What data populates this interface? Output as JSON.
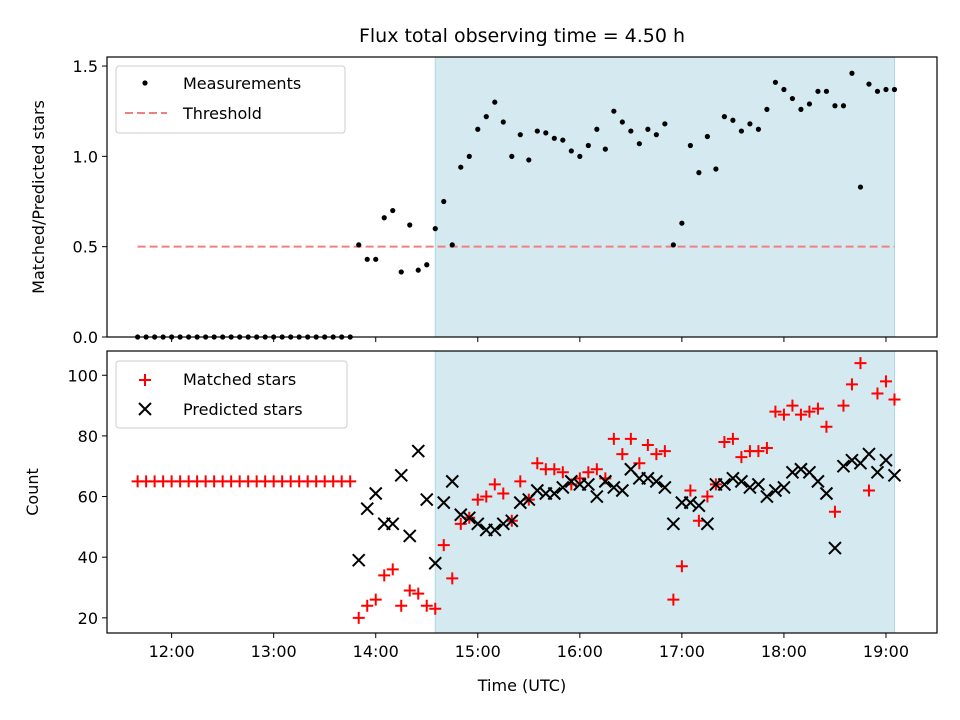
{
  "figure_title": "Flux total observing time = 4.50 h",
  "chart_data": [
    {
      "type": "scatter",
      "ylabel": "Matched/Predicted stars",
      "xlim": [
        "11:22",
        "19:30"
      ],
      "ylim": [
        0,
        1.55
      ],
      "y_ticks": [
        "0.0",
        "0.5",
        "1.0",
        "1.5"
      ],
      "y_tick_values": [
        0,
        0.5,
        1.0,
        1.5
      ],
      "shaded_region": {
        "x_start": "14:35",
        "x_end": "19:05",
        "color": "#d4eaf0"
      },
      "legend": {
        "position": "top-left",
        "entries": [
          {
            "label": "Measurements",
            "marker": "dot",
            "color": "#000000"
          },
          {
            "label": "Threshold",
            "marker": "dashed-line",
            "color": "#f08080"
          }
        ]
      },
      "threshold": {
        "value": 0.5,
        "x_start": "11:40",
        "x_end": "19:05"
      },
      "series": [
        {
          "name": "Measurements",
          "color": "#000000",
          "x": [
            "11:40",
            "11:45",
            "11:50",
            "11:55",
            "12:00",
            "12:05",
            "12:10",
            "12:15",
            "12:20",
            "12:25",
            "12:30",
            "12:35",
            "12:40",
            "12:45",
            "12:50",
            "12:55",
            "13:00",
            "13:05",
            "13:10",
            "13:15",
            "13:20",
            "13:25",
            "13:30",
            "13:35",
            "13:40",
            "13:45",
            "13:50",
            "13:55",
            "14:00",
            "14:05",
            "14:10",
            "14:15",
            "14:20",
            "14:25",
            "14:30",
            "14:35",
            "14:40",
            "14:45",
            "14:50",
            "14:55",
            "15:00",
            "15:05",
            "15:10",
            "15:15",
            "15:20",
            "15:25",
            "15:30",
            "15:35",
            "15:40",
            "15:45",
            "15:50",
            "15:55",
            "16:00",
            "16:05",
            "16:10",
            "16:15",
            "16:20",
            "16:25",
            "16:30",
            "16:35",
            "16:40",
            "16:45",
            "16:50",
            "16:55",
            "17:00",
            "17:05",
            "17:10",
            "17:15",
            "17:20",
            "17:25",
            "17:30",
            "17:35",
            "17:40",
            "17:45",
            "17:50",
            "17:55",
            "18:00",
            "18:05",
            "18:10",
            "18:15",
            "18:20",
            "18:25",
            "18:30",
            "18:35",
            "18:40",
            "18:45",
            "18:50",
            "18:55",
            "19:00",
            "19:05"
          ],
          "y": [
            0,
            0,
            0,
            0,
            0,
            0,
            0,
            0,
            0,
            0,
            0,
            0,
            0,
            0,
            0,
            0,
            0,
            0,
            0,
            0,
            0,
            0,
            0,
            0,
            0,
            0,
            0.51,
            0.43,
            0.43,
            0.66,
            0.7,
            0.36,
            0.62,
            0.37,
            0.4,
            0.6,
            0.75,
            0.51,
            0.94,
            1.0,
            1.15,
            1.22,
            1.3,
            1.19,
            1.0,
            1.12,
            0.98,
            1.14,
            1.13,
            1.1,
            1.09,
            1.03,
            1.0,
            1.06,
            1.15,
            1.04,
            1.25,
            1.19,
            1.14,
            1.07,
            1.15,
            1.12,
            1.18,
            0.51,
            0.63,
            1.06,
            0.91,
            1.11,
            0.93,
            1.22,
            1.2,
            1.14,
            1.18,
            1.15,
            1.26,
            1.41,
            1.37,
            1.32,
            1.26,
            1.29,
            1.36,
            1.36,
            1.28,
            1.28,
            1.46,
            0.83,
            1.4,
            1.36,
            1.37,
            1.37
          ]
        }
      ]
    },
    {
      "type": "scatter",
      "xlabel": "Time (UTC)",
      "ylabel": "Count",
      "xlim": [
        "11:22",
        "19:30"
      ],
      "ylim": [
        15,
        108
      ],
      "x_ticks": [
        "12:00",
        "13:00",
        "14:00",
        "15:00",
        "16:00",
        "17:00",
        "18:00",
        "19:00"
      ],
      "y_ticks": [
        "20",
        "40",
        "60",
        "80",
        "100"
      ],
      "y_tick_values": [
        20,
        40,
        60,
        80,
        100
      ],
      "shaded_region": {
        "x_start": "14:35",
        "x_end": "19:05",
        "color": "#d4eaf0"
      },
      "legend": {
        "position": "top-left",
        "entries": [
          {
            "label": "Matched stars",
            "marker": "plus",
            "color": "#ff0000"
          },
          {
            "label": "Predicted stars",
            "marker": "x",
            "color": "#000000"
          }
        ]
      },
      "series": [
        {
          "name": "Matched stars",
          "marker": "plus",
          "color": "#ff0000",
          "x": [
            "11:40",
            "11:45",
            "11:50",
            "11:55",
            "12:00",
            "12:05",
            "12:10",
            "12:15",
            "12:20",
            "12:25",
            "12:30",
            "12:35",
            "12:40",
            "12:45",
            "12:50",
            "12:55",
            "13:00",
            "13:05",
            "13:10",
            "13:15",
            "13:20",
            "13:25",
            "13:30",
            "13:35",
            "13:40",
            "13:45",
            "13:50",
            "13:55",
            "14:00",
            "14:05",
            "14:10",
            "14:15",
            "14:20",
            "14:25",
            "14:30",
            "14:35",
            "14:40",
            "14:45",
            "14:50",
            "14:55",
            "15:00",
            "15:05",
            "15:10",
            "15:15",
            "15:20",
            "15:25",
            "15:30",
            "15:35",
            "15:40",
            "15:45",
            "15:50",
            "15:55",
            "16:00",
            "16:05",
            "16:10",
            "16:15",
            "16:20",
            "16:25",
            "16:30",
            "16:35",
            "16:40",
            "16:45",
            "16:50",
            "16:55",
            "17:00",
            "17:05",
            "17:10",
            "17:15",
            "17:20",
            "17:25",
            "17:30",
            "17:35",
            "17:40",
            "17:45",
            "17:50",
            "17:55",
            "18:00",
            "18:05",
            "18:10",
            "18:15",
            "18:20",
            "18:25",
            "18:30",
            "18:35",
            "18:40",
            "18:45",
            "18:50",
            "18:55",
            "19:00",
            "19:05"
          ],
          "y": [
            65,
            65,
            65,
            65,
            65,
            65,
            65,
            65,
            65,
            65,
            65,
            65,
            65,
            65,
            65,
            65,
            65,
            65,
            65,
            65,
            65,
            65,
            65,
            65,
            65,
            65,
            20,
            24,
            26,
            34,
            36,
            24,
            29,
            28,
            24,
            23,
            44,
            33,
            51,
            53,
            59,
            60,
            64,
            61,
            52,
            65,
            59,
            71,
            69,
            69,
            68,
            64,
            66,
            68,
            69,
            66,
            79,
            74,
            79,
            71,
            77,
            74,
            75,
            26,
            37,
            62,
            52,
            60,
            64,
            78,
            79,
            73,
            75,
            75,
            76,
            88,
            87,
            90,
            87,
            88,
            89,
            83,
            55,
            90,
            97,
            104,
            62,
            94,
            98,
            92
          ]
        },
        {
          "name": "Predicted stars",
          "marker": "x",
          "color": "#000000",
          "x": [
            "13:50",
            "13:55",
            "14:00",
            "14:05",
            "14:10",
            "14:15",
            "14:20",
            "14:25",
            "14:30",
            "14:35",
            "14:40",
            "14:45",
            "14:50",
            "14:55",
            "15:00",
            "15:05",
            "15:10",
            "15:15",
            "15:20",
            "15:25",
            "15:30",
            "15:35",
            "15:40",
            "15:45",
            "15:50",
            "15:55",
            "16:00",
            "16:05",
            "16:10",
            "16:15",
            "16:20",
            "16:25",
            "16:30",
            "16:35",
            "16:40",
            "16:45",
            "16:50",
            "16:55",
            "17:00",
            "17:05",
            "17:10",
            "17:15",
            "17:20",
            "17:25",
            "17:30",
            "17:35",
            "17:40",
            "17:45",
            "17:50",
            "17:55",
            "18:00",
            "18:05",
            "18:10",
            "18:15",
            "18:20",
            "18:25",
            "18:30",
            "18:35",
            "18:40",
            "18:45",
            "18:50",
            "18:55",
            "19:00",
            "19:05"
          ],
          "y": [
            39,
            56,
            61,
            51,
            51,
            67,
            47,
            75,
            59,
            38,
            58,
            65,
            54,
            53,
            51,
            49,
            49,
            51,
            52,
            58,
            59,
            62,
            61,
            61,
            63,
            65,
            64,
            64,
            60,
            65,
            63,
            62,
            69,
            66,
            66,
            65,
            63,
            51,
            58,
            58,
            57,
            51,
            64,
            64,
            66,
            65,
            63,
            64,
            60,
            62,
            63,
            68,
            69,
            68,
            65,
            61,
            43,
            70,
            72,
            71,
            74,
            68,
            72,
            67
          ]
        }
      ]
    }
  ]
}
